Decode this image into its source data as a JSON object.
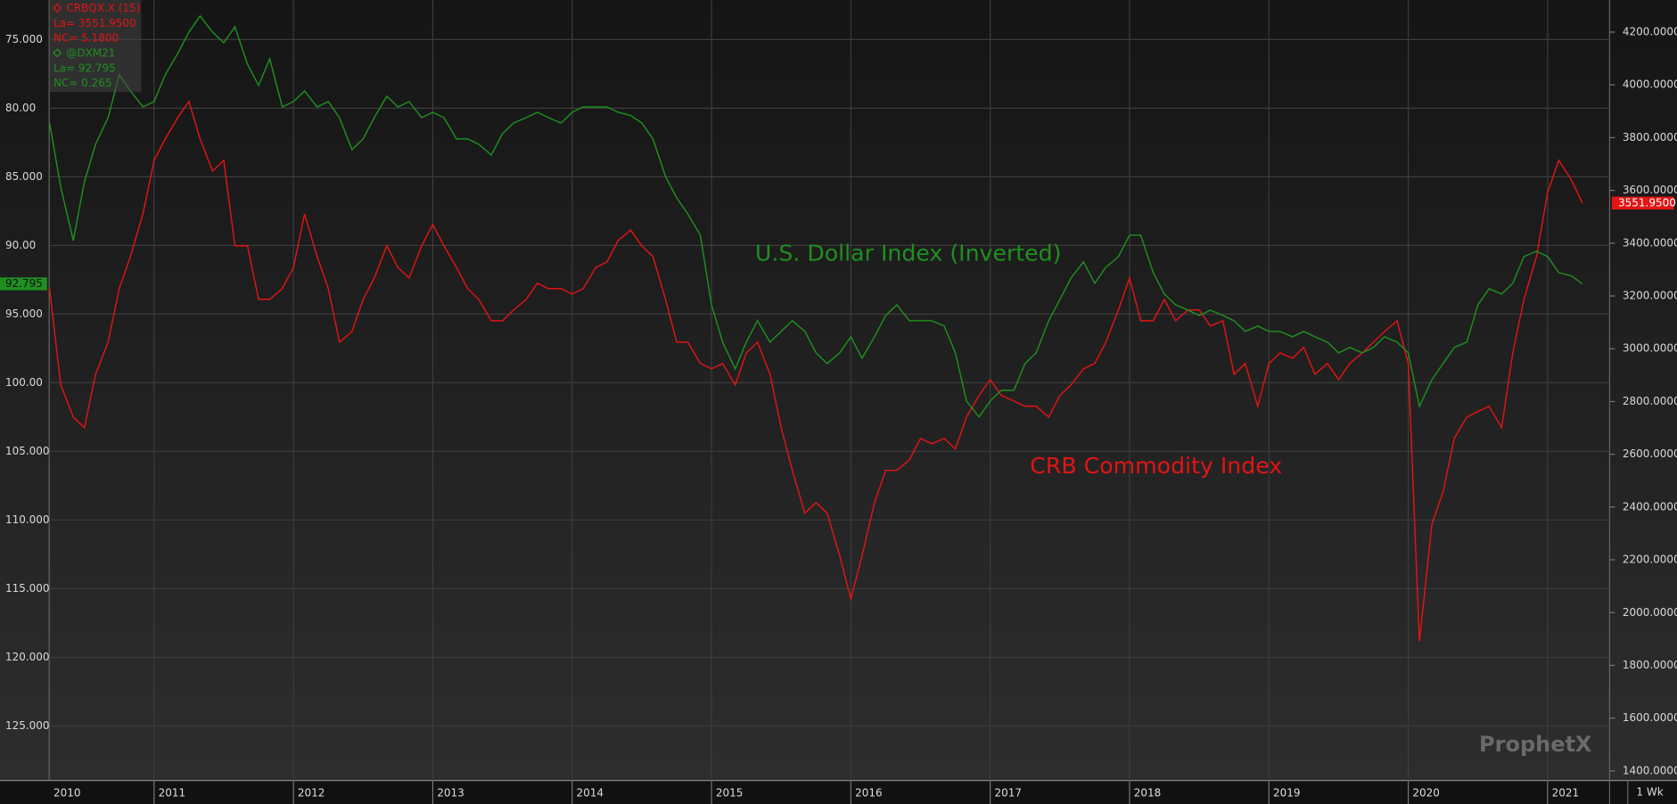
{
  "chart_data": {
    "type": "line",
    "x_edge_label": "2010",
    "x": [
      2010.25,
      2010.33,
      2010.42,
      2010.5,
      2010.58,
      2010.67,
      2010.75,
      2010.83,
      2010.92,
      2011,
      2011.08,
      2011.17,
      2011.25,
      2011.33,
      2011.42,
      2011.5,
      2011.58,
      2011.67,
      2011.75,
      2011.83,
      2011.92,
      2012,
      2012.08,
      2012.17,
      2012.25,
      2012.33,
      2012.42,
      2012.5,
      2012.58,
      2012.67,
      2012.75,
      2012.83,
      2012.92,
      2013,
      2013.08,
      2013.17,
      2013.25,
      2013.33,
      2013.42,
      2013.5,
      2013.58,
      2013.67,
      2013.75,
      2013.83,
      2013.92,
      2014,
      2014.08,
      2014.17,
      2014.25,
      2014.33,
      2014.42,
      2014.5,
      2014.58,
      2014.67,
      2014.75,
      2014.83,
      2014.92,
      2015,
      2015.08,
      2015.17,
      2015.25,
      2015.33,
      2015.42,
      2015.5,
      2015.58,
      2015.67,
      2015.75,
      2015.83,
      2015.92,
      2016,
      2016.08,
      2016.17,
      2016.25,
      2016.33,
      2016.42,
      2016.5,
      2016.58,
      2016.67,
      2016.75,
      2016.83,
      2016.92,
      2017,
      2017.08,
      2017.17,
      2017.25,
      2017.33,
      2017.42,
      2017.5,
      2017.58,
      2017.67,
      2017.75,
      2017.83,
      2017.92,
      2018,
      2018.08,
      2018.17,
      2018.25,
      2018.33,
      2018.42,
      2018.5,
      2018.58,
      2018.67,
      2018.75,
      2018.83,
      2018.92,
      2019,
      2019.08,
      2019.17,
      2019.25,
      2019.33,
      2019.42,
      2019.5,
      2019.58,
      2019.67,
      2019.75,
      2019.83,
      2019.92,
      2020,
      2020.08,
      2020.17,
      2020.25,
      2020.33,
      2020.42,
      2020.5,
      2020.58,
      2020.67,
      2020.75,
      2020.83,
      2020.92,
      2021,
      2021.08,
      2021.17,
      2021.25
    ],
    "xlim": [
      2010.255,
      2021.445
    ],
    "xticks": [
      2011,
      2012,
      2013,
      2014,
      2015,
      2016,
      2017,
      2018,
      2019,
      2020,
      2021
    ],
    "ylim": [
      72.12,
      128.97
    ],
    "y_inverted": true,
    "yticks": [
      {
        "value": 75,
        "label": "75.000"
      },
      {
        "value": 80,
        "label": "80.00"
      },
      {
        "value": 85,
        "label": "85.000"
      },
      {
        "value": 90,
        "label": "90.00"
      },
      {
        "value": 95,
        "label": "95.000"
      },
      {
        "value": 100,
        "label": "100.00"
      },
      {
        "value": 105,
        "label": "105.000"
      },
      {
        "value": 110,
        "label": "110.000"
      },
      {
        "value": 115,
        "label": "115.000"
      },
      {
        "value": 120,
        "label": "120.000"
      },
      {
        "value": 125,
        "label": "125.000"
      }
    ],
    "y2lim": [
      1363.8,
      4321.6
    ],
    "y2ticks": [
      {
        "value": 1400,
        "label": "1400.0000"
      },
      {
        "value": 1600,
        "label": "1600.0000"
      },
      {
        "value": 1800,
        "label": "1800.0000"
      },
      {
        "value": 2000,
        "label": "2000.0000"
      },
      {
        "value": 2200,
        "label": "2200.0000"
      },
      {
        "value": 2400,
        "label": "2400.0000"
      },
      {
        "value": 2600,
        "label": "2600.0000"
      },
      {
        "value": 2800,
        "label": "2800.0000"
      },
      {
        "value": 3000,
        "label": "3000.0000"
      },
      {
        "value": 3200,
        "label": "3200.0000"
      },
      {
        "value": 3400,
        "label": "3400.0000"
      },
      {
        "value": 3600,
        "label": "3600.0000"
      },
      {
        "value": 3800,
        "label": "3800.0000"
      },
      {
        "value": 4000,
        "label": "4000.0000"
      },
      {
        "value": 4200,
        "label": "4200.0000"
      }
    ],
    "grid": true,
    "series": [
      {
        "name": "CRB Commodity Index",
        "color": "#e31414",
        "axis": "y2",
        "last_value": 3551.95,
        "last_label": "3551.9500",
        "legend_lines": [
          "CRBQX.X (15)",
          "La= 3551.9500",
          "NC= 5.1800"
        ],
        "values": [
          3228,
          2863,
          2741,
          2701,
          2903,
          3025,
          3228,
          3349,
          3511,
          3714,
          3795,
          3876,
          3937,
          3795,
          3673,
          3714,
          3390,
          3390,
          3187,
          3187,
          3228,
          3308,
          3511,
          3349,
          3228,
          3025,
          3065,
          3187,
          3268,
          3390,
          3308,
          3268,
          3390,
          3471,
          3390,
          3308,
          3228,
          3187,
          3106,
          3106,
          3147,
          3187,
          3248,
          3228,
          3228,
          3207,
          3228,
          3308,
          3329,
          3410,
          3450,
          3390,
          3349,
          3187,
          3025,
          3025,
          2944,
          2924,
          2944,
          2863,
          2984,
          3025,
          2903,
          2701,
          2539,
          2377,
          2417,
          2377,
          2215,
          2052,
          2215,
          2417,
          2539,
          2539,
          2579,
          2660,
          2640,
          2660,
          2620,
          2741,
          2823,
          2883,
          2823,
          2802,
          2782,
          2782,
          2741,
          2823,
          2863,
          2924,
          2944,
          3025,
          3147,
          3268,
          3106,
          3106,
          3187,
          3106,
          3147,
          3147,
          3086,
          3106,
          2903,
          2944,
          2782,
          2944,
          2984,
          2964,
          3005,
          2903,
          2944,
          2883,
          2944,
          2984,
          3025,
          3065,
          3106,
          2944,
          1890,
          2336,
          2458,
          2660,
          2741,
          2762,
          2782,
          2701,
          2984,
          3187,
          3349,
          3592,
          3714,
          3640,
          3551.95
        ]
      },
      {
        "name": "U.S. Dollar Index (Inverted)",
        "color": "#1f8f1f",
        "axis": "y",
        "last_value": 92.795,
        "last_label": "92.795",
        "legend_lines": [
          "@DXM21",
          "La= 92.795",
          "NC= 0.265"
        ],
        "values": [
          81.08,
          85.75,
          89.64,
          85.36,
          82.63,
          80.69,
          77.57,
          78.74,
          79.91,
          79.52,
          77.57,
          76.01,
          74.46,
          73.29,
          74.46,
          75.24,
          74.07,
          76.79,
          78.35,
          76.4,
          79.91,
          79.52,
          78.74,
          79.91,
          79.52,
          80.69,
          83.02,
          82.24,
          80.69,
          79.13,
          79.91,
          79.52,
          80.69,
          80.3,
          80.69,
          82.24,
          82.24,
          82.63,
          83.41,
          81.86,
          81.08,
          80.69,
          80.3,
          80.69,
          81.08,
          80.3,
          79.91,
          79.91,
          79.91,
          80.3,
          80.53,
          81.08,
          82.24,
          84.97,
          86.53,
          87.7,
          89.25,
          94.32,
          97.04,
          98.99,
          97.04,
          95.48,
          97.04,
          96.26,
          95.48,
          96.26,
          97.82,
          98.6,
          97.82,
          96.65,
          98.21,
          96.65,
          95.1,
          94.32,
          95.48,
          95.48,
          95.48,
          95.87,
          97.82,
          101.33,
          102.49,
          101.33,
          100.55,
          100.55,
          98.6,
          97.82,
          95.48,
          93.93,
          92.37,
          91.2,
          92.76,
          91.59,
          90.81,
          89.25,
          89.25,
          91.98,
          93.54,
          94.32,
          94.71,
          95.1,
          94.71,
          95.1,
          95.48,
          96.26,
          95.87,
          96.26,
          96.26,
          96.65,
          96.26,
          96.65,
          97.04,
          97.82,
          97.43,
          97.82,
          97.43,
          96.65,
          97.04,
          97.82,
          101.72,
          99.77,
          98.6,
          97.43,
          97.04,
          94.32,
          93.15,
          93.54,
          92.76,
          90.81,
          90.42,
          90.81,
          91.98,
          92.21,
          92.795
        ]
      }
    ],
    "annotations": [
      {
        "text": "U.S. Dollar Index (Inverted)",
        "series": 1
      },
      {
        "text": "CRB Commodity Index",
        "series": 0
      }
    ],
    "watermark": "ProphetX",
    "interval": "1 Wk"
  }
}
